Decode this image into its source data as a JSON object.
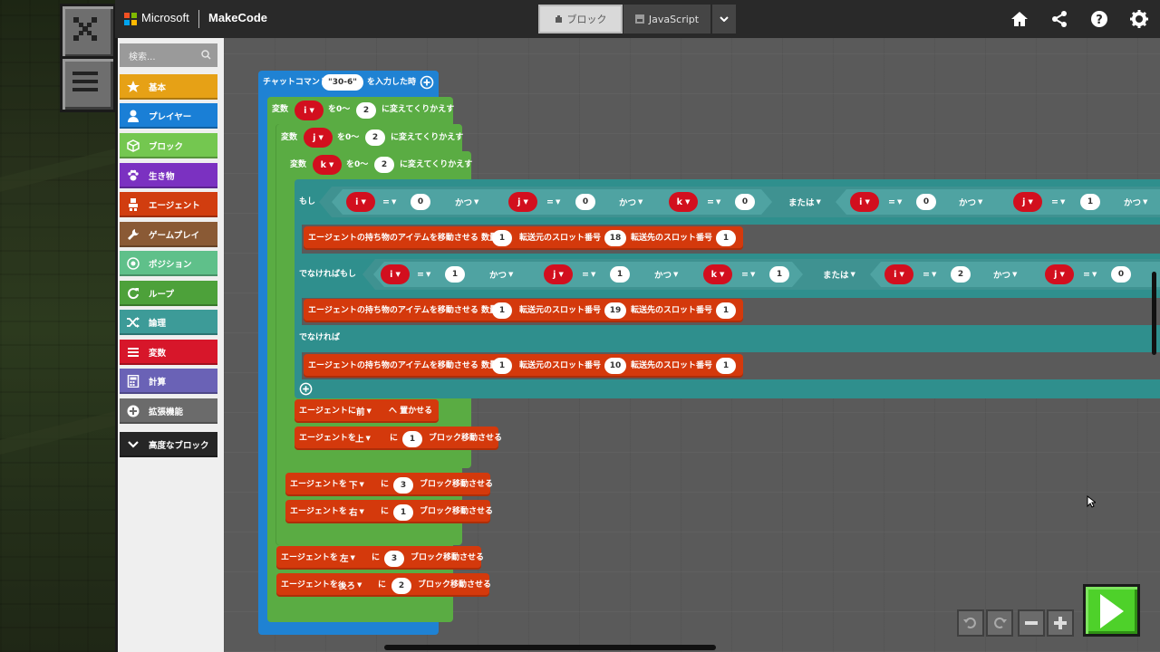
{
  "app": {
    "brand": "Microsoft",
    "product": "MakeCode"
  },
  "tabs": {
    "blocks": "ブロック",
    "javascript": "JavaScript"
  },
  "search": {
    "placeholder": "検索..."
  },
  "categories": [
    {
      "label": "基本",
      "color": "#e6a116",
      "icon": "star-icon"
    },
    {
      "label": "プレイヤー",
      "color": "#1a7fd6",
      "icon": "person-icon"
    },
    {
      "label": "ブロック",
      "color": "#74c750",
      "icon": "cube-icon"
    },
    {
      "label": "生き物",
      "color": "#7b31c1",
      "icon": "paw-icon"
    },
    {
      "label": "エージェント",
      "color": "#d13d0f",
      "icon": "agent-icon"
    },
    {
      "label": "ゲームプレイ",
      "color": "#8a5a35",
      "icon": "wrench-icon"
    },
    {
      "label": "ポジション",
      "color": "#5fc08a",
      "icon": "target-icon"
    },
    {
      "label": "ループ",
      "color": "#4da13a",
      "icon": "loop-icon"
    },
    {
      "label": "論理",
      "color": "#3d9b98",
      "icon": "shuffle-icon"
    },
    {
      "label": "変数",
      "color": "#d7162a",
      "icon": "list-icon"
    },
    {
      "label": "計算",
      "color": "#6a62b6",
      "icon": "calculator-icon"
    },
    {
      "label": "拡張機能",
      "color": "#6b6b6b",
      "icon": "plus-icon"
    },
    {
      "label": "高度なブロック",
      "color": "#262626",
      "icon": "chevron-down-icon"
    }
  ],
  "blocks": {
    "chat_cmd": "チャットコマンド",
    "chat_value": "\"30-6\"",
    "chat_suffix": "を入力した時",
    "var_word": "変数",
    "loop_from": "を0〜",
    "loop_suffix": "に変えてくりかえす",
    "var_i": "i",
    "var_j": "j",
    "var_k": "k",
    "two": "2",
    "if_label": "もし",
    "elseif_label": "でなければもし",
    "else_label": "でなければ",
    "eq": "=",
    "and_op": "かつ",
    "or_op": "または",
    "cond_if": [
      "0",
      "0",
      "0",
      "0",
      "1"
    ],
    "cond_elseif": [
      "1",
      "1",
      "1",
      "2",
      "0"
    ],
    "transfer_prefix": "エージェントの持ち物のアイテムを移動させる 数量",
    "transfer_from": "転送元のスロット番号",
    "transfer_to": "転送先のスロット番号",
    "transfer1": {
      "qty": "1",
      "from": "18",
      "to": "1"
    },
    "transfer2": {
      "qty": "1",
      "from": "19",
      "to": "1"
    },
    "transfer3": {
      "qty": "1",
      "from": "10",
      "to": "1"
    },
    "place_prefix": "エージェントに",
    "place_dir": "前",
    "place_suffix": "へ 置かせる",
    "move_prefix": "エージェントを",
    "move_ni": "に",
    "move_suffix": "ブロック移動させる",
    "moves": [
      {
        "dir": "上",
        "n": "1"
      },
      {
        "dir": "下",
        "n": "3"
      },
      {
        "dir": "右",
        "n": "1"
      },
      {
        "dir": "左",
        "n": "3"
      },
      {
        "dir": "後ろ",
        "n": "2"
      }
    ]
  },
  "colors": {
    "event": "#1f82d3",
    "loop": "#5aac43",
    "logic": "#2f8f8d",
    "variable": "#d20f1e",
    "agent": "#d4390c",
    "run": "#4ed12a"
  }
}
